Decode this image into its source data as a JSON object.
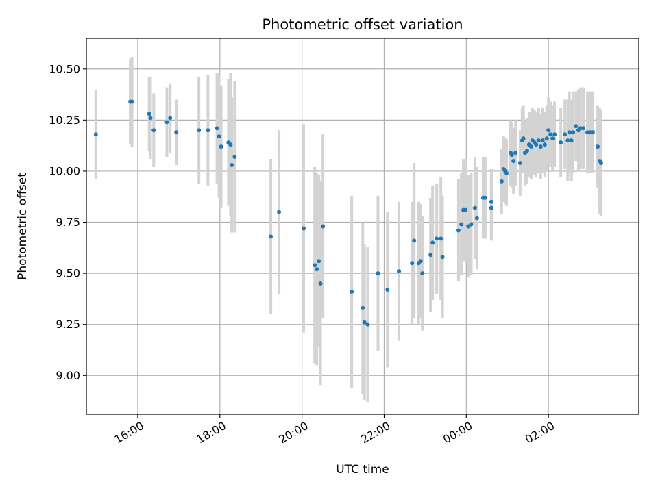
{
  "chart_data": {
    "type": "scatter",
    "title": "Photometric offset variation",
    "xlabel": "UTC time",
    "ylabel": "Photometric offset",
    "x_unit": "hours since 00:00 UTC of first night (values >= 24 fall after midnight)",
    "xlim": [
      14.75,
      28.2
    ],
    "ylim": [
      8.81,
      10.65
    ],
    "grid": true,
    "legend": "none",
    "x_ticks": [
      {
        "value": 16,
        "label": "16:00"
      },
      {
        "value": 18,
        "label": "18:00"
      },
      {
        "value": 20,
        "label": "20:00"
      },
      {
        "value": 22,
        "label": "22:00"
      },
      {
        "value": 24,
        "label": "00:00"
      },
      {
        "value": 26,
        "label": "02:00"
      }
    ],
    "y_ticks": [
      {
        "value": 9.0,
        "label": "9.00"
      },
      {
        "value": 9.25,
        "label": "9.25"
      },
      {
        "value": 9.5,
        "label": "9.50"
      },
      {
        "value": 9.75,
        "label": "9.75"
      },
      {
        "value": 10.0,
        "label": "10.00"
      },
      {
        "value": 10.25,
        "label": "10.25"
      },
      {
        "value": 10.5,
        "label": "10.50"
      }
    ],
    "colors": {
      "point": "#1f77b4",
      "errorbar": "#d3d3d3"
    },
    "series": [
      {
        "points": [
          [
            14.98,
            10.18,
            0.22
          ],
          [
            15.82,
            10.34,
            0.21
          ],
          [
            15.86,
            10.34,
            0.22
          ],
          [
            16.28,
            10.28,
            0.18
          ],
          [
            16.31,
            10.26,
            0.2
          ],
          [
            16.39,
            10.2,
            0.18
          ],
          [
            16.71,
            10.24,
            0.17
          ],
          [
            16.79,
            10.26,
            0.17
          ],
          [
            16.94,
            10.19,
            0.16
          ],
          [
            17.49,
            10.2,
            0.26
          ],
          [
            17.71,
            10.2,
            0.27
          ],
          [
            17.93,
            10.21,
            0.27
          ],
          [
            17.98,
            10.17,
            0.3
          ],
          [
            18.03,
            10.12,
            0.3
          ],
          [
            18.21,
            10.14,
            0.31
          ],
          [
            18.26,
            10.13,
            0.35
          ],
          [
            18.29,
            10.03,
            0.33
          ],
          [
            18.36,
            10.07,
            0.37
          ],
          [
            19.24,
            9.68,
            0.38
          ],
          [
            19.44,
            9.8,
            0.4
          ],
          [
            20.04,
            9.72,
            0.51
          ],
          [
            20.31,
            9.54,
            0.48
          ],
          [
            20.36,
            9.52,
            0.47
          ],
          [
            20.41,
            9.56,
            0.42
          ],
          [
            20.45,
            9.45,
            0.5
          ],
          [
            20.51,
            9.73,
            0.45
          ],
          [
            21.21,
            9.41,
            0.47
          ],
          [
            21.48,
            9.33,
            0.42
          ],
          [
            21.52,
            9.26,
            0.38
          ],
          [
            21.6,
            9.25,
            0.38
          ],
          [
            21.85,
            9.5,
            0.38
          ],
          [
            22.08,
            9.42,
            0.38
          ],
          [
            22.36,
            9.51,
            0.34
          ],
          [
            22.68,
            9.55,
            0.3
          ],
          [
            22.73,
            9.66,
            0.38
          ],
          [
            22.84,
            9.55,
            0.3
          ],
          [
            22.89,
            9.56,
            0.28
          ],
          [
            22.93,
            9.5,
            0.28
          ],
          [
            23.13,
            9.59,
            0.28
          ],
          [
            23.18,
            9.65,
            0.28
          ],
          [
            23.28,
            9.67,
            0.27
          ],
          [
            23.38,
            9.67,
            0.3
          ],
          [
            23.42,
            9.58,
            0.3
          ],
          [
            23.81,
            9.71,
            0.25
          ],
          [
            23.88,
            9.74,
            0.25
          ],
          [
            23.93,
            9.81,
            0.25
          ],
          [
            23.98,
            9.81,
            0.25
          ],
          [
            24.05,
            9.73,
            0.25
          ],
          [
            24.12,
            9.74,
            0.25
          ],
          [
            24.21,
            9.82,
            0.25
          ],
          [
            24.26,
            9.77,
            0.25
          ],
          [
            24.41,
            9.87,
            0.2
          ],
          [
            24.46,
            9.87,
            0.2
          ],
          [
            24.61,
            9.85,
            0.16
          ],
          [
            24.61,
            9.82,
            0.16
          ],
          [
            24.86,
            9.95,
            0.16
          ],
          [
            24.91,
            10.01,
            0.16
          ],
          [
            24.95,
            10.0,
            0.16
          ],
          [
            24.98,
            9.99,
            0.16
          ],
          [
            25.08,
            10.09,
            0.16
          ],
          [
            25.11,
            10.08,
            0.16
          ],
          [
            25.15,
            10.05,
            0.16
          ],
          [
            25.2,
            10.09,
            0.16
          ],
          [
            25.31,
            10.04,
            0.16
          ],
          [
            25.36,
            10.15,
            0.16
          ],
          [
            25.39,
            10.16,
            0.16
          ],
          [
            25.43,
            10.09,
            0.16
          ],
          [
            25.48,
            10.1,
            0.16
          ],
          [
            25.53,
            10.13,
            0.16
          ],
          [
            25.58,
            10.12,
            0.16
          ],
          [
            25.61,
            10.15,
            0.16
          ],
          [
            25.66,
            10.14,
            0.16
          ],
          [
            25.7,
            10.13,
            0.16
          ],
          [
            25.76,
            10.15,
            0.16
          ],
          [
            25.81,
            10.12,
            0.16
          ],
          [
            25.86,
            10.15,
            0.16
          ],
          [
            25.91,
            10.13,
            0.16
          ],
          [
            25.96,
            10.16,
            0.16
          ],
          [
            26.0,
            10.2,
            0.16
          ],
          [
            26.05,
            10.18,
            0.16
          ],
          [
            26.1,
            10.16,
            0.16
          ],
          [
            26.15,
            10.18,
            0.16
          ],
          [
            26.3,
            10.14,
            0.17
          ],
          [
            26.4,
            10.18,
            0.17
          ],
          [
            26.47,
            10.15,
            0.2
          ],
          [
            26.51,
            10.19,
            0.2
          ],
          [
            26.56,
            10.15,
            0.2
          ],
          [
            26.6,
            10.19,
            0.2
          ],
          [
            26.67,
            10.22,
            0.17
          ],
          [
            26.73,
            10.2,
            0.2
          ],
          [
            26.78,
            10.21,
            0.2
          ],
          [
            26.85,
            10.21,
            0.2
          ],
          [
            26.95,
            10.19,
            0.2
          ],
          [
            27.02,
            10.19,
            0.2
          ],
          [
            27.08,
            10.19,
            0.2
          ],
          [
            27.2,
            10.12,
            0.2
          ],
          [
            27.25,
            10.05,
            0.26
          ],
          [
            27.28,
            10.04,
            0.26
          ]
        ]
      }
    ]
  }
}
